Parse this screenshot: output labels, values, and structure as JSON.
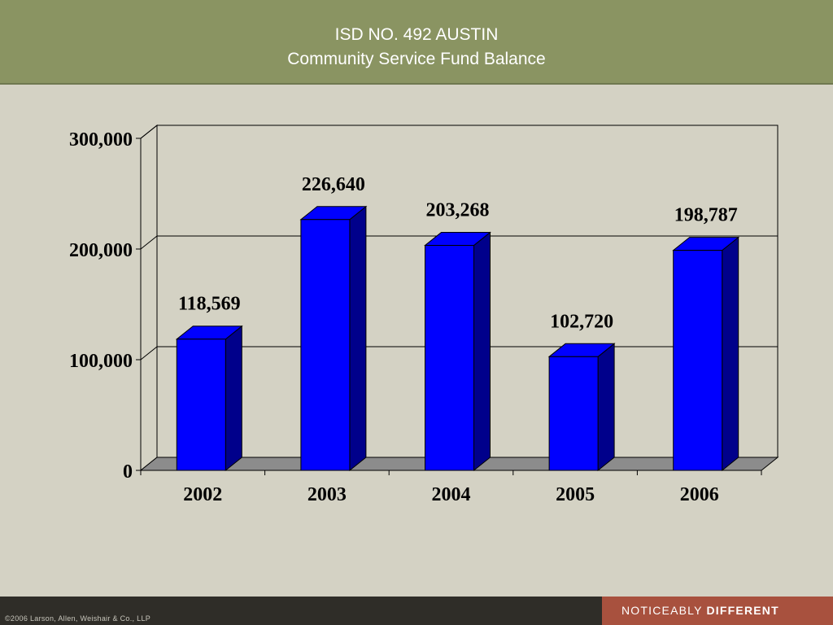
{
  "header": {
    "title_line1": "ISD NO. 492 AUSTIN",
    "title_line2": "Community Service Fund Balance"
  },
  "colors": {
    "header_bg": "#8a9462",
    "page_bg": "#d4d2c4",
    "bar_front": "#0000ff",
    "bar_side": "#00008b",
    "floor": "#8c8c8c",
    "footer_bg": "#2f2d28",
    "tagline_bg": "#a8513e"
  },
  "chart_data": {
    "type": "bar",
    "style": "3d",
    "categories": [
      "2002",
      "2003",
      "2004",
      "2005",
      "2006"
    ],
    "values": [
      118569,
      226640,
      203268,
      102720,
      198787
    ],
    "data_labels": [
      "118,569",
      "226,640",
      "203,268",
      "102,720",
      "198,787"
    ],
    "yticks": [
      0,
      100000,
      200000,
      300000
    ],
    "ytick_labels": [
      "0",
      "100,000",
      "200,000",
      "300,000"
    ],
    "ylim": [
      0,
      300000
    ],
    "grid": true,
    "legend": "none"
  },
  "footer": {
    "copyright": "©2006 Larson, Allen, Weishair & Co., LLP",
    "tagline_regular": "NOTICEABLY",
    "tagline_bold": "DIFFERENT"
  }
}
